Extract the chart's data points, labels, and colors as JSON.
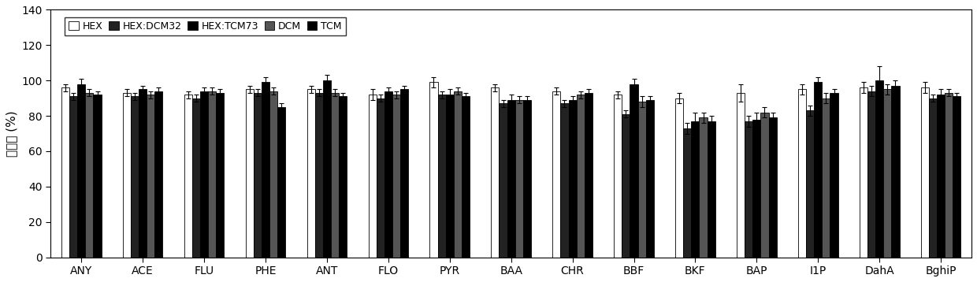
{
  "categories": [
    "ANY",
    "ACE",
    "FLU",
    "PHE",
    "ANT",
    "FLO",
    "PYR",
    "BAA",
    "CHR",
    "BBF",
    "BKF",
    "BAP",
    "I1P",
    "DahA",
    "BghiP"
  ],
  "series_labels": [
    "HEX",
    "HEX:DCM32",
    "HEX:TCM73",
    "DCM",
    "TCM"
  ],
  "series_colors": [
    "#ffffff",
    "#222222",
    "#000000",
    "#555555",
    "#000000"
  ],
  "series_edgecolors": [
    "#000000",
    "#000000",
    "#000000",
    "#000000",
    "#000000"
  ],
  "values": {
    "HEX": [
      96,
      93,
      92,
      95,
      95,
      92,
      99,
      96,
      94,
      92,
      90,
      93,
      95,
      96,
      96
    ],
    "HEX:DCM32": [
      91,
      91,
      90,
      93,
      93,
      90,
      92,
      87,
      87,
      81,
      73,
      77,
      83,
      94,
      90
    ],
    "HEX:TCM73": [
      98,
      95,
      94,
      99,
      100,
      94,
      92,
      89,
      89,
      98,
      77,
      78,
      99,
      100,
      92
    ],
    "DCM": [
      93,
      92,
      94,
      94,
      93,
      92,
      94,
      89,
      92,
      88,
      79,
      82,
      90,
      95,
      93
    ],
    "TCM": [
      92,
      94,
      93,
      85,
      91,
      95,
      91,
      89,
      93,
      89,
      77,
      79,
      93,
      97,
      91
    ]
  },
  "errors": {
    "HEX": [
      2,
      2,
      2,
      2,
      2,
      3,
      3,
      2,
      2,
      2,
      3,
      5,
      3,
      3,
      3
    ],
    "HEX:DCM32": [
      2,
      2,
      2,
      2,
      2,
      2,
      2,
      2,
      2,
      2,
      3,
      3,
      3,
      3,
      2
    ],
    "HEX:TCM73": [
      3,
      2,
      2,
      3,
      3,
      2,
      3,
      3,
      2,
      3,
      5,
      4,
      3,
      8,
      3
    ],
    "DCM": [
      2,
      2,
      2,
      2,
      2,
      2,
      2,
      2,
      2,
      3,
      3,
      3,
      3,
      3,
      2
    ],
    "TCM": [
      2,
      2,
      2,
      2,
      2,
      2,
      2,
      2,
      2,
      2,
      3,
      3,
      2,
      3,
      2
    ]
  },
  "ylabel": "回收率 (%)",
  "ylim": [
    0,
    140
  ],
  "yticks": [
    0,
    20,
    40,
    60,
    80,
    100,
    120,
    140
  ],
  "bar_width": 0.13,
  "figsize": [
    12.4,
    3.58
  ],
  "dpi": 100
}
